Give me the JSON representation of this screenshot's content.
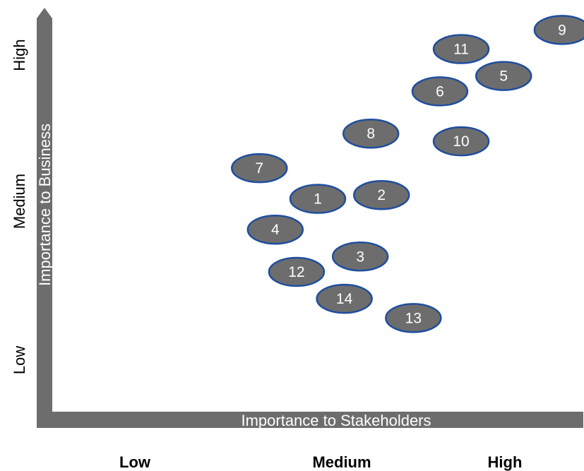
{
  "chart_data": {
    "type": "scatter",
    "xlabel": "Importance to Stakeholders",
    "ylabel": "Importance to Business",
    "x_ticks": [
      "Low",
      "Medium",
      "High"
    ],
    "y_ticks": [
      "Low",
      "Medium",
      "High"
    ],
    "xlim": [
      0,
      1
    ],
    "ylim": [
      0,
      1
    ],
    "grid": false,
    "colors": {
      "axis": "#6d6d6d",
      "bubble_fill": "#6d6d6d",
      "bubble_stroke": "#1f4e9e",
      "bubble_text": "#ffffff"
    },
    "points": [
      {
        "label": "1",
        "x": 0.5,
        "y": 0.53
      },
      {
        "label": "2",
        "x": 0.62,
        "y": 0.54
      },
      {
        "label": "3",
        "x": 0.58,
        "y": 0.38
      },
      {
        "label": "4",
        "x": 0.42,
        "y": 0.45
      },
      {
        "label": "5",
        "x": 0.85,
        "y": 0.85
      },
      {
        "label": "6",
        "x": 0.73,
        "y": 0.81
      },
      {
        "label": "7",
        "x": 0.39,
        "y": 0.61
      },
      {
        "label": "8",
        "x": 0.6,
        "y": 0.7
      },
      {
        "label": "9",
        "x": 0.96,
        "y": 0.97
      },
      {
        "label": "10",
        "x": 0.77,
        "y": 0.68
      },
      {
        "label": "11",
        "x": 0.77,
        "y": 0.92
      },
      {
        "label": "12",
        "x": 0.46,
        "y": 0.34
      },
      {
        "label": "13",
        "x": 0.68,
        "y": 0.22
      },
      {
        "label": "14",
        "x": 0.55,
        "y": 0.27
      }
    ]
  }
}
